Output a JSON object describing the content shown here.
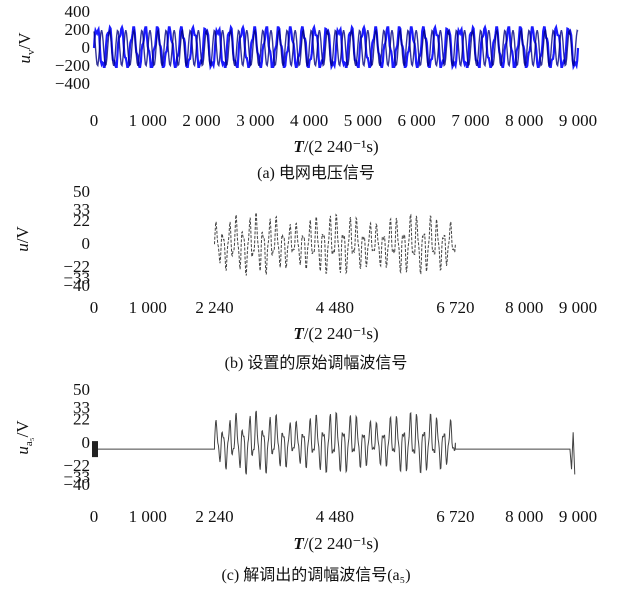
{
  "chart_data": [
    {
      "id": "a",
      "type": "line",
      "caption": "(a) 电网电压信号",
      "ylabel": "u_v/V",
      "ylabel_main": "u",
      "ylabel_sub": "v",
      "ylabel_rest": "/V",
      "xlabel_main": "T",
      "xlabel_rest": "/(2 240⁻¹s)",
      "xlim": [
        0,
        9000
      ],
      "ylim": [
        -400,
        400
      ],
      "xticks": [
        0,
        1000,
        2000,
        3000,
        4000,
        5000,
        6000,
        7000,
        8000,
        9000
      ],
      "xtick_labels": [
        "0",
        "1 000",
        "2 000",
        "3 000",
        "4 000",
        "5 000",
        "6 000",
        "7 000",
        "8 000",
        "9 000"
      ],
      "yticks": [
        400,
        200,
        0,
        -200,
        -400
      ],
      "ytick_labels": [
        "400",
        "200",
        "0",
        "−200",
        "−400"
      ],
      "series": [
        {
          "color": "#1a1aff",
          "x_start": 0,
          "x_end": 9000,
          "amplitude": 220,
          "cycles": 40
        }
      ]
    },
    {
      "id": "b",
      "type": "line",
      "caption": "(b) 设置的原始调幅波信号",
      "ylabel_main": "u",
      "ylabel_sub": "",
      "ylabel_rest": "/V",
      "xlabel_main": "T",
      "xlabel_rest": "/(2 240⁻¹s)",
      "xlim": [
        0,
        9000
      ],
      "ylim": [
        -40,
        50
      ],
      "xticks": [
        0,
        1000,
        2240,
        4480,
        6720,
        8000,
        9000
      ],
      "xtick_labels": [
        "0",
        "1 000",
        "2 240",
        "4 480",
        "6 720",
        "8 000",
        "9 000"
      ],
      "yticks": [
        50,
        33,
        22,
        0,
        -22,
        -33,
        -40
      ],
      "ytick_labels": [
        "50",
        "33",
        "22",
        "0",
        "−22",
        "−33",
        "−40"
      ],
      "series": [
        {
          "color": "#222222",
          "x_start": 2240,
          "x_end": 6720,
          "amplitude_start": 22,
          "amplitude_end": 33,
          "cycles": 36
        }
      ]
    },
    {
      "id": "c",
      "type": "line",
      "caption": "(c) 解调出的调幅波信号(a₅)",
      "ylabel_main": "u",
      "ylabel_sub": "a₅",
      "ylabel_rest": "/V",
      "xlabel_main": "T",
      "xlabel_rest": "/(2 240⁻¹s)",
      "xlim": [
        0,
        9000
      ],
      "ylim": [
        -40,
        50
      ],
      "xticks": [
        0,
        1000,
        2240,
        4480,
        6720,
        8000,
        9000
      ],
      "xtick_labels": [
        "0",
        "1 000",
        "2 240",
        "4 480",
        "6 720",
        "8 000",
        "9 000"
      ],
      "yticks": [
        50,
        33,
        22,
        0,
        -22,
        -33,
        -40
      ],
      "ytick_labels": [
        "50",
        "33",
        "22",
        "0",
        "−22",
        "−33",
        "−40"
      ],
      "series": [
        {
          "color": "#222222",
          "flat_level": -6,
          "x_start": 2240,
          "x_end": 6720,
          "amplitude_start": 22,
          "amplitude_end": 33,
          "cycles": 36
        }
      ]
    }
  ]
}
